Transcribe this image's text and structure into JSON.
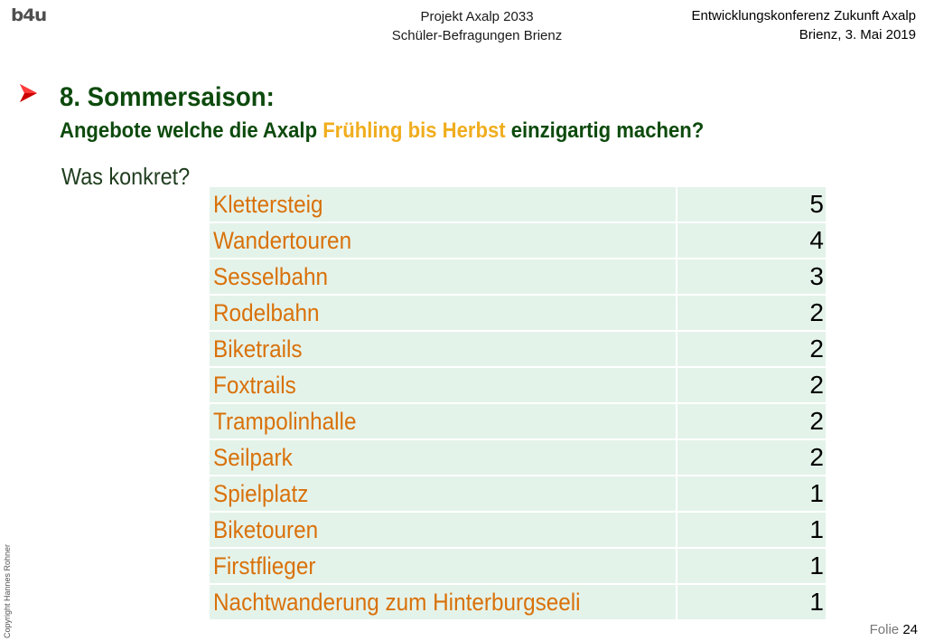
{
  "header": {
    "logo": "b4u",
    "center_line1": "Projekt Axalp 2033",
    "center_line2": "Schüler-Befragungen Brienz",
    "right_line1": "Entwicklungskonferenz Zukunft Axalp",
    "right_line2": "Brienz, 3. Mai 2019"
  },
  "slide": {
    "title": "8. Sommersaison:",
    "question_before": "Angebote welche die Axalp ",
    "question_highlight": "Frühling bis Herbst",
    "question_after": " einzigartig machen?",
    "subheading": "Was konkret?"
  },
  "table": {
    "rows": [
      {
        "label": "Klettersteig",
        "count": "5"
      },
      {
        "label": "Wandertouren",
        "count": "4"
      },
      {
        "label": "Sesselbahn",
        "count": "3"
      },
      {
        "label": "Rodelbahn",
        "count": "2"
      },
      {
        "label": "Biketrails",
        "count": "2"
      },
      {
        "label": "Foxtrails",
        "count": "2"
      },
      {
        "label": "Trampolinhalle",
        "count": "2"
      },
      {
        "label": "Seilpark",
        "count": "2"
      },
      {
        "label": "Spielplatz",
        "count": "1"
      },
      {
        "label": "Biketouren",
        "count": "1"
      },
      {
        "label": "Firstflieger",
        "count": "1"
      },
      {
        "label": "Nachtwanderung zum Hinterburgseeli",
        "count": "1"
      }
    ]
  },
  "footer": {
    "copyright": "Copyright Hannes Rohner",
    "slide_label": "Folie",
    "slide_number": "24"
  },
  "colors": {
    "title_green": "#0d4a0d",
    "highlight_orange": "#f0ad1d",
    "row_text_orange": "#d9710a",
    "row_background": "#e4f3ea",
    "bullet_red": "#cc0000"
  }
}
